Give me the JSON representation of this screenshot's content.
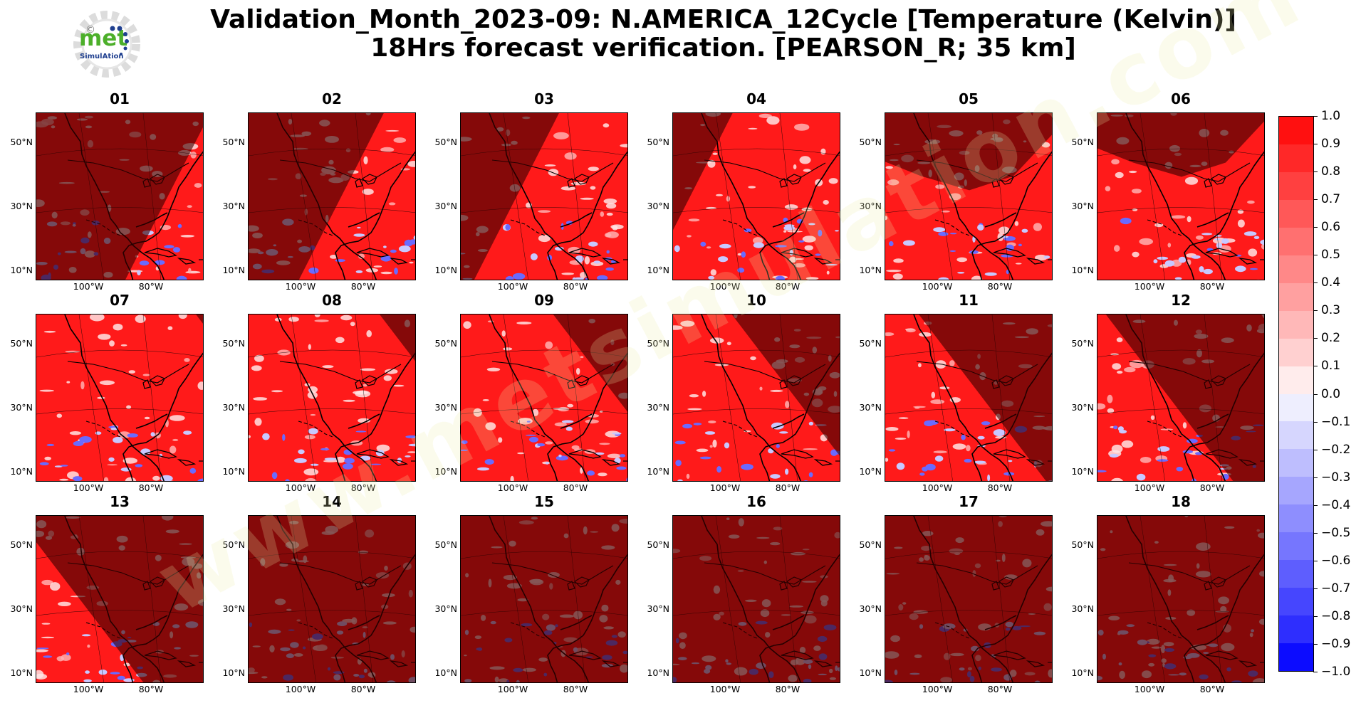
{
  "header": {
    "title_line1": "Validation_Month_2023-09: N.AMERICA_12Cycle [Temperature (Kelvin)]",
    "title_line2": "18Hrs forecast verification.  [PEARSON_R; 35 km]"
  },
  "logo": {
    "text_main": "met",
    "text_sub": "SimulAtion",
    "copyright": "©"
  },
  "watermark": "www.metsimulation.com",
  "axes": {
    "lat_labels": [
      "50°N",
      "30°N",
      "10°N"
    ],
    "lon_labels": [
      "100°W",
      "80°W"
    ]
  },
  "panels": [
    {
      "label": "01",
      "night_mode": "left",
      "night_pos": 0.78
    },
    {
      "label": "02",
      "night_mode": "left",
      "night_pos": 0.55
    },
    {
      "label": "03",
      "night_mode": "left",
      "night_pos": 0.33
    },
    {
      "label": "04",
      "night_mode": "left",
      "night_pos": 0.1
    },
    {
      "label": "05",
      "night_mode": "top",
      "night_pos": 0.12
    },
    {
      "label": "06",
      "night_mode": "top",
      "night_pos": 0.04
    },
    {
      "label": "07",
      "night_mode": "right",
      "night_pos": 0.95
    },
    {
      "label": "08",
      "night_mode": "right",
      "night_pos": 0.78
    },
    {
      "label": "09",
      "night_mode": "right",
      "night_pos": 0.55
    },
    {
      "label": "10",
      "night_mode": "right",
      "night_pos": 0.35
    },
    {
      "label": "11",
      "night_mode": "right",
      "night_pos": 0.2
    },
    {
      "label": "12",
      "night_mode": "right",
      "night_pos": 0.05
    },
    {
      "label": "13",
      "night_mode": "right",
      "night_pos": -0.12
    },
    {
      "label": "14",
      "night_mode": "all",
      "night_pos": 0
    },
    {
      "label": "15",
      "night_mode": "all",
      "night_pos": 0
    },
    {
      "label": "16",
      "night_mode": "all",
      "night_pos": 0
    },
    {
      "label": "17",
      "night_mode": "all",
      "night_pos": 0
    },
    {
      "label": "18",
      "night_mode": "all",
      "night_pos": 0
    }
  ],
  "colorbar": {
    "tick_labels": [
      "1.0",
      "0.9",
      "0.8",
      "0.7",
      "0.6",
      "0.5",
      "0.4",
      "0.3",
      "0.2",
      "0.1",
      "0.0",
      "−0.1",
      "−0.2",
      "−0.3",
      "−0.4",
      "−0.5",
      "−0.6",
      "−0.7",
      "−0.8",
      "−0.9",
      "−1.0"
    ],
    "colors": [
      "#ff1010",
      "#ff2828",
      "#ff4040",
      "#ff5858",
      "#ff7070",
      "#ff8888",
      "#ffa0a0",
      "#ffb8b8",
      "#ffd0d0",
      "#ffecec",
      "#eeeefe",
      "#d6d6fe",
      "#bebefe",
      "#a6a6fe",
      "#8e8efe",
      "#7676fe",
      "#5e5efe",
      "#4646fe",
      "#2e2efe",
      "#0c0cff"
    ]
  }
}
